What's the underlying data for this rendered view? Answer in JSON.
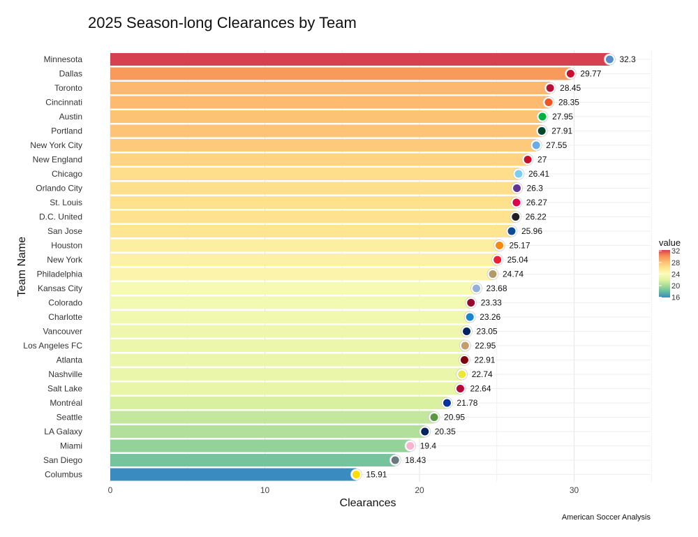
{
  "chart_data": {
    "type": "bar",
    "orientation": "horizontal",
    "title": "2025 Season-long Clearances by Team",
    "xlabel": "Clearances",
    "ylabel": "Team Name",
    "xlim": [
      0,
      35
    ],
    "xticks": [
      0,
      10,
      20,
      30
    ],
    "grid": true,
    "caption": "American Soccer Analysis",
    "legend": {
      "title": "value",
      "position": "right",
      "ticks": [
        32,
        28,
        24,
        20,
        16
      ],
      "range": [
        15.91,
        32.3
      ],
      "colors": [
        "#d7404e",
        "#f88d55",
        "#fdbe72",
        "#fee38e",
        "#fbfcb8",
        "#e2f3a2",
        "#a6dc98",
        "#66bd9f",
        "#3a8bbf"
      ]
    },
    "categories": [
      "Minnesota",
      "Dallas",
      "Toronto",
      "Cincinnati",
      "Austin",
      "Portland",
      "New York City",
      "New England",
      "Chicago",
      "Orlando City",
      "St. Louis",
      "D.C. United",
      "San Jose",
      "Houston",
      "New York",
      "Philadelphia",
      "Kansas City",
      "Colorado",
      "Charlotte",
      "Vancouver",
      "Los Angeles FC",
      "Atlanta",
      "Nashville",
      "Salt Lake",
      "Montréal",
      "Seattle",
      "LA Galaxy",
      "Miami",
      "San Diego",
      "Columbus"
    ],
    "values": [
      32.3,
      29.77,
      28.45,
      28.35,
      27.95,
      27.91,
      27.55,
      27,
      26.41,
      26.3,
      26.27,
      26.22,
      25.96,
      25.17,
      25.04,
      24.74,
      23.68,
      23.33,
      23.26,
      23.05,
      22.95,
      22.91,
      22.74,
      22.64,
      21.78,
      20.95,
      20.35,
      19.4,
      18.43,
      15.91
    ],
    "labels": [
      "32.3",
      "29.77",
      "28.45",
      "28.35",
      "27.95",
      "27.91",
      "27.55",
      "27",
      "26.41",
      "26.3",
      "26.27",
      "26.22",
      "25.96",
      "25.17",
      "25.04",
      "24.74",
      "23.68",
      "23.33",
      "23.26",
      "23.05",
      "22.95",
      "22.91",
      "22.74",
      "22.64",
      "21.78",
      "20.95",
      "20.35",
      "19.4",
      "18.43",
      "15.91"
    ],
    "logo_colors": [
      "#5b8cc8",
      "#c8102e",
      "#b81137",
      "#f05323",
      "#00b140",
      "#00482b",
      "#6cace4",
      "#c8102e",
      "#7ccdef",
      "#633492",
      "#dd004a",
      "#231f20",
      "#0d4c92",
      "#f68712",
      "#ed1e36",
      "#b19b69",
      "#93b1d7",
      "#960a2c",
      "#1a85c8",
      "#00245e",
      "#c39e6d",
      "#80000a",
      "#ece83a",
      "#b30838",
      "#0033a1",
      "#5d9741",
      "#00245d",
      "#f7b5cd",
      "#697a7c",
      "#fedd00"
    ]
  }
}
